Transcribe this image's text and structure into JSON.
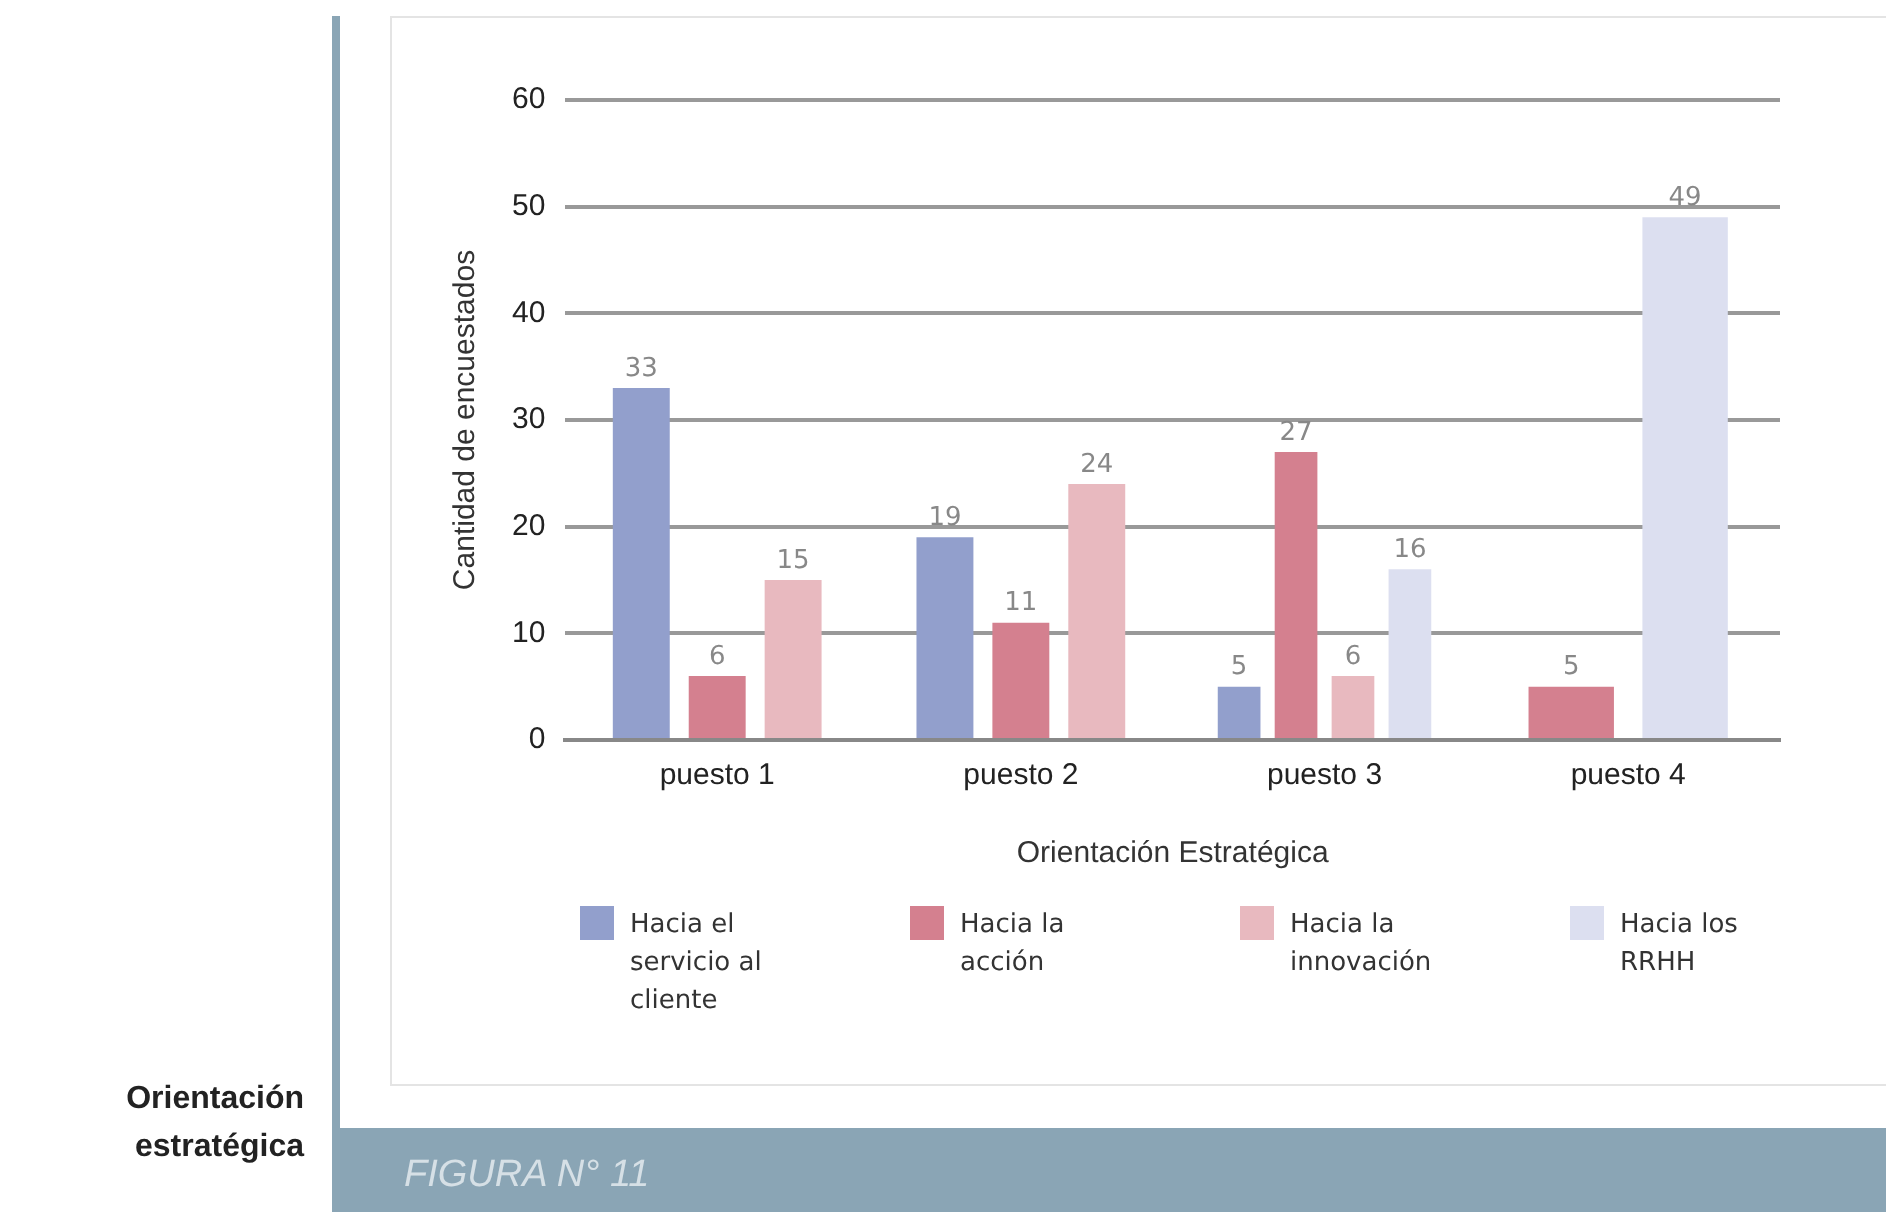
{
  "chart_data": {
    "type": "bar",
    "xlabel": "Orientación Estratégica",
    "ylabel": "Cantidad de encuestados",
    "categories": [
      "puesto 1",
      "puesto 2",
      "puesto 3",
      "puesto 4"
    ],
    "series": [
      {
        "name": "Hacia el servicio al cliente",
        "color": "#929fcc",
        "values": [
          33,
          19,
          5,
          null
        ]
      },
      {
        "name": "Hacia la acción",
        "color": "#d4808f",
        "values": [
          6,
          11,
          27,
          5
        ]
      },
      {
        "name": "Hacia la innovación",
        "color": "#e8b9bf",
        "values": [
          15,
          24,
          6,
          null
        ]
      },
      {
        "name": "Hacia los RRHH",
        "color": "#dcdff0",
        "values": [
          null,
          null,
          16,
          49
        ]
      }
    ],
    "ylim": [
      0,
      60
    ],
    "yticks": [
      0,
      10,
      20,
      30,
      40,
      50,
      60
    ],
    "grid": "y",
    "legend": "bottom",
    "data_labels": true,
    "annotations": [
      "Orientación estratégica",
      "FIGURA N° 11"
    ]
  }
}
